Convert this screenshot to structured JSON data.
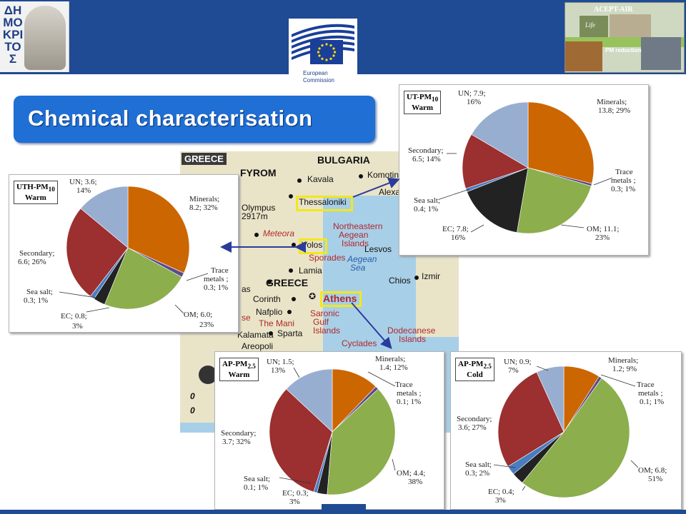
{
  "header": {
    "left_logo_text": "ΔΗΜΟΚΡΙΤΟΣ",
    "ec_label": "European Commission",
    "acept_title": "ACEPT-AIR",
    "acept_sub": "PM reduction",
    "life_text": "Life"
  },
  "title": "Chemical characterisation",
  "map": {
    "country": "GREECE",
    "neighbors": [
      "BULGARIA",
      "FYROM"
    ],
    "places": [
      "Kavala",
      "Komotini",
      "Alexa",
      "Thessaloniki",
      "Olympus",
      "2917m",
      "Meteora",
      "Volos",
      "Lamia",
      "Sporades",
      "Aegean",
      "Sea",
      "Northeastern",
      "Aegean",
      "Islands",
      "Lesvos",
      "Chios",
      "Izmir",
      "GREECE",
      "Corinth",
      "Nafplio",
      "The Mani",
      "Sparta",
      "Kalamata",
      "Areopoli",
      "Athens",
      "Saronic",
      "Gulf",
      "Islands",
      "Dodecanese",
      "Islands",
      "Cyclades",
      "as",
      "se"
    ],
    "scale_marks": [
      "0",
      "0"
    ]
  },
  "chart_data": [
    {
      "type": "pie",
      "title": "UTH-PM10 Warm",
      "title_main": "UTH-PM",
      "title_sub": "10",
      "title_season": "Warm",
      "slices": [
        {
          "name": "Minerals",
          "value": 8.2,
          "pct": "32%",
          "color": "#cc6600"
        },
        {
          "name": "Trace metals",
          "value": 0.3,
          "pct": "1%",
          "color": "#5b4a8c"
        },
        {
          "name": "OM",
          "value": 6.0,
          "pct": "23%",
          "color": "#8cae4c"
        },
        {
          "name": "EC",
          "value": 0.8,
          "pct": "3%",
          "color": "#222222"
        },
        {
          "name": "Sea salt",
          "value": 0.3,
          "pct": "1%",
          "color": "#4a7cc0"
        },
        {
          "name": "Secondary",
          "value": 6.6,
          "pct": "26%",
          "color": "#9c2f2f"
        },
        {
          "name": "UN",
          "value": 3.6,
          "pct": "14%",
          "color": "#98aed0"
        }
      ],
      "labels": [
        "Minerals;",
        "8.2; 32%",
        "Trace",
        "metals ;",
        "0.3; 1%",
        "OM; 6.0;",
        "23%",
        "EC; 0.8;",
        "3%",
        "Sea salt;",
        "0.3; 1%",
        "Secondary;",
        "6.6; 26%",
        "UN; 3.6;",
        "14%"
      ]
    },
    {
      "type": "pie",
      "title": "UT-PM10 Warm",
      "title_main": "UT-PM",
      "title_sub": "10",
      "title_season": "Warm",
      "slices": [
        {
          "name": "Minerals",
          "value": 13.8,
          "pct": "29%",
          "color": "#cc6600"
        },
        {
          "name": "Trace metals",
          "value": 0.3,
          "pct": "1%",
          "color": "#5b4a8c"
        },
        {
          "name": "OM",
          "value": 11.1,
          "pct": "23%",
          "color": "#8cae4c"
        },
        {
          "name": "EC",
          "value": 7.8,
          "pct": "16%",
          "color": "#222222"
        },
        {
          "name": "Sea salt",
          "value": 0.4,
          "pct": "1%",
          "color": "#4a7cc0"
        },
        {
          "name": "Secondary",
          "value": 6.5,
          "pct": "14%",
          "color": "#9c2f2f"
        },
        {
          "name": "UN",
          "value": 7.9,
          "pct": "16%",
          "color": "#98aed0"
        }
      ],
      "labels": [
        "Minerals;",
        "13.8; 29%",
        "Trace",
        "metals ;",
        "0.3; 1%",
        "OM; 11.1;",
        "23%",
        "EC; 7.8;",
        "16%",
        "Sea salt;",
        "0.4; 1%",
        "Secondary;",
        "6.5; 14%",
        "UN; 7.9;",
        "16%"
      ]
    },
    {
      "type": "pie",
      "title": "AP-PM2.5 Warm",
      "title_main": "AP-PM",
      "title_sub": "2.5",
      "title_season": "Warm",
      "slices": [
        {
          "name": "Minerals",
          "value": 1.4,
          "pct": "12%",
          "color": "#cc6600"
        },
        {
          "name": "Trace metals",
          "value": 0.1,
          "pct": "1%",
          "color": "#5b4a8c"
        },
        {
          "name": "OM",
          "value": 4.4,
          "pct": "38%",
          "color": "#8cae4c"
        },
        {
          "name": "EC",
          "value": 0.3,
          "pct": "3%",
          "color": "#222222"
        },
        {
          "name": "Sea salt",
          "value": 0.1,
          "pct": "1%",
          "color": "#4a7cc0"
        },
        {
          "name": "Secondary",
          "value": 3.7,
          "pct": "32%",
          "color": "#9c2f2f"
        },
        {
          "name": "UN",
          "value": 1.5,
          "pct": "13%",
          "color": "#98aed0"
        }
      ],
      "labels": [
        "Minerals;",
        "1.4; 12%",
        "Trace",
        "metals ;",
        "0.1; 1%",
        "OM; 4.4;",
        "38%",
        "EC; 0.3;",
        "3%",
        "Sea salt;",
        "0.1; 1%",
        "Secondary;",
        "3.7; 32%",
        "UN; 1.5;",
        "13%"
      ]
    },
    {
      "type": "pie",
      "title": "AP-PM2.5 Cold",
      "title_main": "AP-PM",
      "title_sub": "2.5",
      "title_season": "Cold",
      "slices": [
        {
          "name": "Minerals",
          "value": 1.2,
          "pct": "9%",
          "color": "#cc6600"
        },
        {
          "name": "Trace metals",
          "value": 0.1,
          "pct": "1%",
          "color": "#5b4a8c"
        },
        {
          "name": "OM",
          "value": 6.8,
          "pct": "51%",
          "color": "#8cae4c"
        },
        {
          "name": "EC",
          "value": 0.4,
          "pct": "3%",
          "color": "#222222"
        },
        {
          "name": "Sea salt",
          "value": 0.3,
          "pct": "2%",
          "color": "#4a7cc0"
        },
        {
          "name": "Secondary",
          "value": 3.6,
          "pct": "27%",
          "color": "#9c2f2f"
        },
        {
          "name": "UN",
          "value": 0.9,
          "pct": "7%",
          "color": "#98aed0"
        }
      ],
      "labels": [
        "Minerals;",
        "1.2; 9%",
        "Trace",
        "metals ;",
        "0.1; 1%",
        "OM; 6.8;",
        "51%",
        "EC; 0.4;",
        "3%",
        "Sea salt;",
        "0.3; 2%",
        "Secondary;",
        "3.6; 27%",
        "UN; 0.9;",
        "7%"
      ]
    }
  ]
}
